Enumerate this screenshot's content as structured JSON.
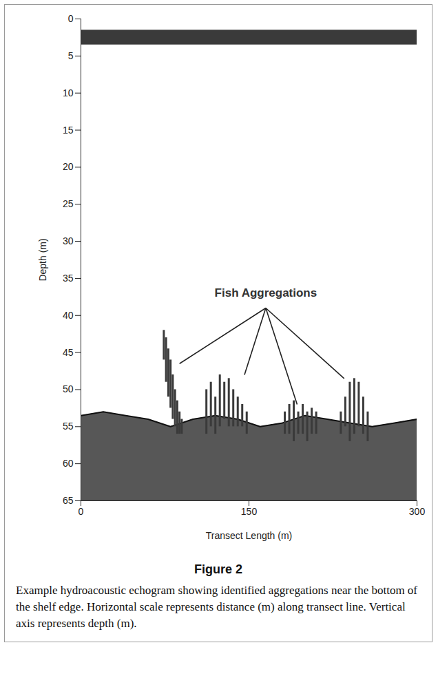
{
  "chart_data": {
    "type": "echogram",
    "title": "Figure 2",
    "caption": "Example hydroacoustic echogram showing identified aggregations near the bottom of the shelf edge. Horizontal scale represents distance (m) along transect line. Vertical axis represents depth (m).",
    "x_label": "Transect Length (m)",
    "y_label": "Depth (m)",
    "xlim": [
      0,
      300
    ],
    "xticks": [
      0,
      150,
      300
    ],
    "ylim": [
      0,
      65
    ],
    "yticks": [
      0,
      5,
      10,
      15,
      20,
      25,
      30,
      35,
      40,
      45,
      50,
      55,
      60,
      65
    ],
    "color": "#3a3a3a",
    "surface_band": [
      1.5,
      3.5
    ],
    "seabed": {
      "x": [
        0,
        20,
        40,
        60,
        80,
        100,
        120,
        140,
        160,
        180,
        200,
        220,
        240,
        260,
        280,
        300
      ],
      "depth": [
        53.5,
        53,
        53.5,
        54,
        55,
        54,
        53.5,
        54,
        55,
        54.5,
        53.5,
        54,
        54.5,
        55,
        54.5,
        54
      ]
    },
    "aggregations": [
      {
        "x": [
          74,
          76,
          78,
          80,
          82,
          84,
          86,
          88,
          90
        ],
        "top": [
          42,
          43,
          44.5,
          46,
          48,
          50,
          51.5,
          53,
          54
        ],
        "bottom": [
          46,
          49,
          51,
          52.5,
          54,
          55,
          56,
          56,
          56
        ]
      },
      {
        "x": [
          112,
          116,
          120,
          124,
          128,
          132,
          136,
          140,
          144,
          148
        ],
        "top": [
          50,
          49,
          51,
          48,
          49,
          48.5,
          50,
          51,
          52,
          53
        ],
        "bottom": [
          56,
          55,
          56,
          55,
          54,
          55,
          55,
          55,
          55,
          56
        ]
      },
      {
        "x": [
          182,
          186,
          190,
          194,
          198,
          202,
          206,
          210
        ],
        "top": [
          53,
          52,
          51.5,
          53,
          52,
          53,
          52.5,
          53
        ],
        "bottom": [
          56,
          56,
          57,
          56,
          56,
          57,
          56,
          56
        ]
      },
      {
        "x": [
          232,
          236,
          240,
          244,
          248,
          252,
          256
        ],
        "top": [
          53,
          51,
          49,
          48.5,
          49,
          51,
          53
        ],
        "bottom": [
          56,
          55,
          57,
          56,
          55,
          56,
          57
        ]
      }
    ],
    "annotations": [
      {
        "text": "Fish Aggregations",
        "x": 165,
        "y": 37,
        "from": {
          "x": 165,
          "y": 39
        },
        "targets": [
          {
            "x": 88,
            "y": 46.5
          },
          {
            "x": 146,
            "y": 48
          },
          {
            "x": 193,
            "y": 52
          },
          {
            "x": 235,
            "y": 48.5
          }
        ]
      }
    ]
  }
}
